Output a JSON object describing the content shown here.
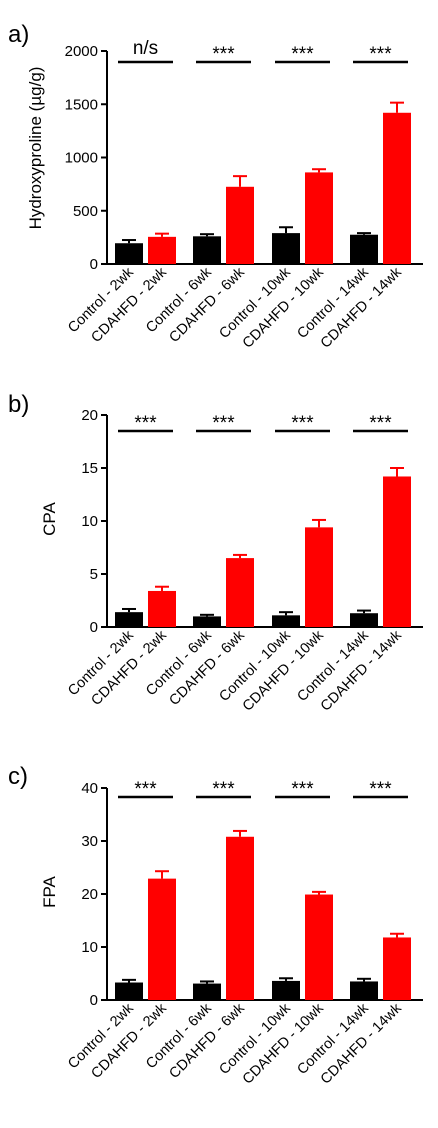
{
  "chart_data": [
    {
      "type": "bar",
      "panel_label": "a)",
      "ylabel": "Hydroxyproline (µg/g)",
      "ylim": [
        0,
        2000
      ],
      "yticks": [
        0,
        500,
        1000,
        1500,
        2000
      ],
      "grid": false,
      "categories": [
        "Control - 2wk",
        "CDAHFD - 2wk",
        "Control - 6wk",
        "CDAHFD - 6wk",
        "Control - 10wk",
        "CDAHFD - 10wk",
        "Control - 14wk",
        "CDAHFD - 14wk"
      ],
      "values": [
        195,
        255,
        260,
        725,
        290,
        860,
        275,
        1420
      ],
      "errors": [
        30,
        30,
        20,
        100,
        55,
        30,
        15,
        95
      ],
      "colors": [
        "#000000",
        "#ff0000",
        "#000000",
        "#ff0000",
        "#000000",
        "#ff0000",
        "#000000",
        "#ff0000"
      ],
      "significance": [
        "n/s",
        "***",
        "***",
        "***"
      ]
    },
    {
      "type": "bar",
      "panel_label": "b)",
      "ylabel": "CPA",
      "ylim": [
        0,
        20
      ],
      "yticks": [
        0,
        5,
        10,
        15,
        20
      ],
      "grid": false,
      "categories": [
        "Control - 2wk",
        "CDAHFD - 2wk",
        "Control - 6wk",
        "CDAHFD - 6wk",
        "Control - 10wk",
        "CDAHFD - 10wk",
        "Control - 14wk",
        "CDAHFD - 14wk"
      ],
      "values": [
        1.4,
        3.4,
        1.0,
        6.5,
        1.1,
        9.4,
        1.3,
        14.2
      ],
      "errors": [
        0.3,
        0.4,
        0.15,
        0.3,
        0.3,
        0.7,
        0.25,
        0.8
      ],
      "colors": [
        "#000000",
        "#ff0000",
        "#000000",
        "#ff0000",
        "#000000",
        "#ff0000",
        "#000000",
        "#ff0000"
      ],
      "significance": [
        "***",
        "***",
        "***",
        "***"
      ]
    },
    {
      "type": "bar",
      "panel_label": "c)",
      "ylabel": "FPA",
      "ylim": [
        0,
        40
      ],
      "yticks": [
        0,
        10,
        20,
        30,
        40
      ],
      "grid": false,
      "categories": [
        "Control - 2wk",
        "CDAHFD - 2wk",
        "Control - 6wk",
        "CDAHFD - 6wk",
        "Control - 10wk",
        "CDAHFD - 10wk",
        "Control - 14wk",
        "CDAHFD - 14wk"
      ],
      "values": [
        3.3,
        22.9,
        3.1,
        30.8,
        3.6,
        19.9,
        3.5,
        11.8
      ],
      "errors": [
        0.5,
        1.4,
        0.4,
        1.1,
        0.5,
        0.5,
        0.5,
        0.7
      ],
      "colors": [
        "#000000",
        "#ff0000",
        "#000000",
        "#ff0000",
        "#000000",
        "#ff0000",
        "#000000",
        "#ff0000"
      ],
      "significance": [
        "***",
        "***",
        "***",
        "***"
      ]
    }
  ]
}
